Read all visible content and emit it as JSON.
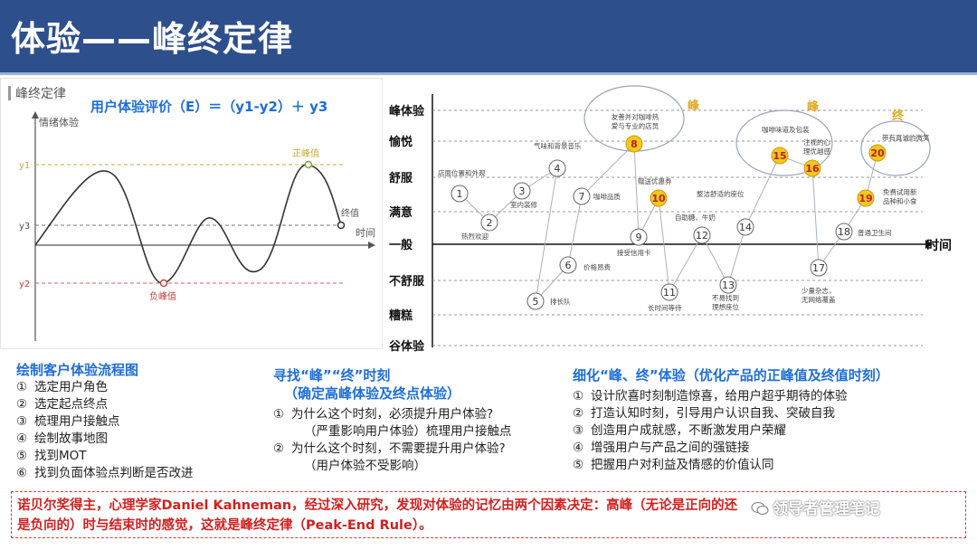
{
  "title": "体验——峰终定律",
  "left_chart": {
    "label": "峰终定律",
    "y_axis_label": "情绪体验",
    "x_axis_label": "时间",
    "y_ticks": [
      "y1",
      "y3",
      "y2"
    ],
    "peak_label": "正峰值",
    "end_label": "终值",
    "trough_label": "负峰值"
  },
  "formula": "用户体验评价（E）＝（y1-y2）＋ y3",
  "right_chart": {
    "y_levels": [
      "峰体验",
      "愉悦",
      "舒服",
      "满意",
      "一般",
      "不舒服",
      "糟糕",
      "谷体验"
    ],
    "x_axis_label": "时间",
    "peak_tags": [
      "峰",
      "峰",
      "终"
    ],
    "points": [
      {
        "n": "1",
        "label": "店面位置和外观"
      },
      {
        "n": "2",
        "label": "热烈欢迎"
      },
      {
        "n": "3",
        "label": "室内装修"
      },
      {
        "n": "4",
        "label": "气味和背景音乐"
      },
      {
        "n": "5",
        "label": "排长队"
      },
      {
        "n": "6",
        "label": "价格昂贵"
      },
      {
        "n": "7",
        "label": "咖啡品质"
      },
      {
        "n": "8",
        "label": "友善并对咖啡热爱与专业的店员"
      },
      {
        "n": "9",
        "label": "接受信用卡"
      },
      {
        "n": "10",
        "label": "赠送优惠券"
      },
      {
        "n": "11",
        "label": "长时间等待"
      },
      {
        "n": "12",
        "label": "自助糖、牛奶"
      },
      {
        "n": "13",
        "label": "不易找到理想座位"
      },
      {
        "n": "14",
        "label": "整洁舒适的座位"
      },
      {
        "n": "15",
        "label": "咖啡味道及包装"
      },
      {
        "n": "16",
        "label": "注视的心理优越感"
      },
      {
        "n": "17",
        "label": "少量杂志，无网络覆盖"
      },
      {
        "n": "18",
        "label": "普通卫生间"
      },
      {
        "n": "19",
        "label": "免费试用新品种和小食"
      },
      {
        "n": "20",
        "label": "带有真诚的微笑"
      }
    ]
  },
  "col1": {
    "heading": "绘制客户体验流程图",
    "items": [
      {
        "n": "①",
        "text": "选定用户角色"
      },
      {
        "n": "②",
        "text": "选定起点终点"
      },
      {
        "n": "③",
        "text": "梳理用户接触点"
      },
      {
        "n": "④",
        "text": "绘制故事地图"
      },
      {
        "n": "⑤",
        "text": "找到MOT"
      },
      {
        "n": "⑥",
        "text": "找到负面体验点判断是否改进"
      }
    ]
  },
  "col2": {
    "heading1": "寻找“峰”“终”时刻",
    "heading2": "（确定高峰体验及终点体验）",
    "items": [
      {
        "n": "①",
        "text": "为什么这个时刻，必须提升用户体验?",
        "sub": "（严重影响用户体验）梳理用户接触点"
      },
      {
        "n": "②",
        "text": "为什么这个时刻，不需要提升用户体验?",
        "sub": "（用户体验不受影响）"
      }
    ]
  },
  "col3": {
    "heading": "细化“峰、终”体验（优化产品的正峰值及终值时刻）",
    "items": [
      {
        "n": "①",
        "text": "设计欣喜时刻制造惊喜，给用户超乎期待的体验"
      },
      {
        "n": "②",
        "text": "打造认知时刻，引导用户认识自我、突破自我"
      },
      {
        "n": "③",
        "text": "创造用户成就感，不断激发用户荣耀"
      },
      {
        "n": "④",
        "text": "增强用户与产品之间的强链接"
      },
      {
        "n": "⑤",
        "text": "把握用户对利益及情感的价值认同"
      }
    ]
  },
  "callout": "诺贝尔奖得主，心理学家Daniel Kahneman，经过深入研究，发现对体验的记忆由两个因素决定：高峰（无论是正向的还是负向的）时与结束时的感觉，这就是峰终定律（Peak-End Rule）。",
  "watermark": "领导者管理笔记",
  "colors": {
    "header": "#2d4f8b",
    "accent_blue": "#1e6ed8",
    "red": "#d41f1f",
    "highlight": "#f3c81e"
  }
}
